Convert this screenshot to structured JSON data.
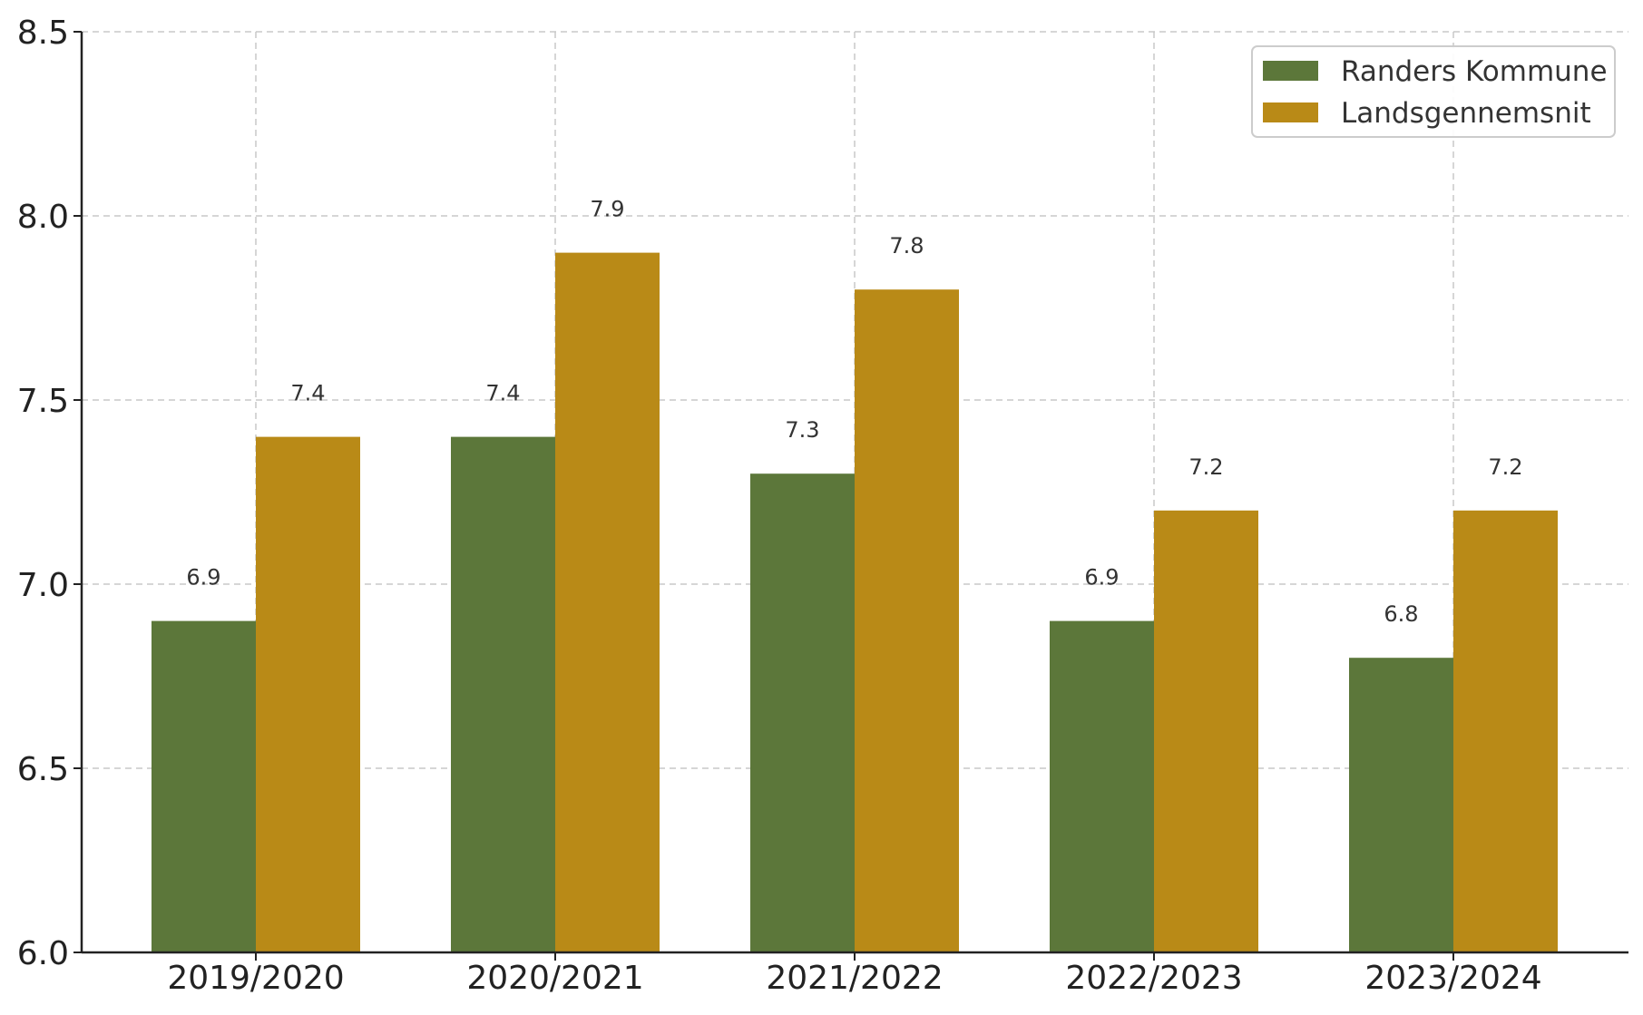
{
  "chart_data": {
    "type": "bar",
    "title": "",
    "xlabel": "",
    "ylabel": "",
    "categories": [
      "2019/2020",
      "2020/2021",
      "2021/2022",
      "2022/2023",
      "2023/2024"
    ],
    "series": [
      {
        "name": "Randers Kommune",
        "color": "#5c773a",
        "values": [
          6.9,
          7.4,
          7.3,
          6.9,
          6.8
        ]
      },
      {
        "name": "Landsgennemsnit",
        "color": "#b98a17",
        "values": [
          7.4,
          7.9,
          7.8,
          7.2,
          7.2
        ]
      }
    ],
    "ylim": [
      6.0,
      8.5
    ],
    "yticks": [
      6.0,
      6.5,
      7.0,
      7.5,
      8.0,
      8.5
    ],
    "ytick_labels": [
      "6.0",
      "6.5",
      "7.0",
      "7.5",
      "8.0",
      "8.5"
    ],
    "grid": true,
    "grid_style": "dashed",
    "legend_position": "top-right",
    "data_labels": true
  }
}
